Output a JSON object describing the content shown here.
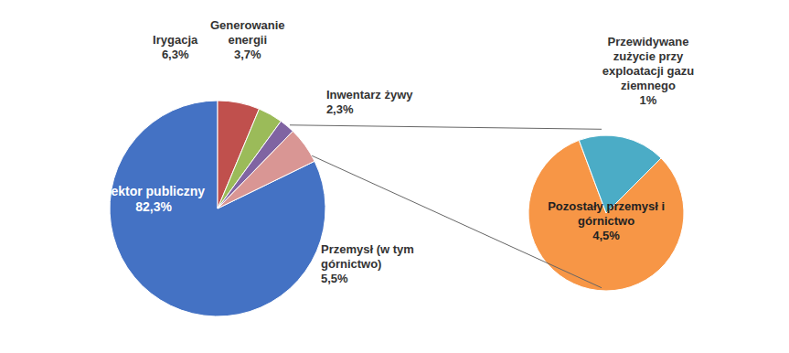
{
  "chart_data": [
    {
      "type": "pie",
      "categories": [
        "Sektor publiczny",
        "Irygacja",
        "Generowanie\nenergii",
        "Inwentarz żywy",
        "Przemysł (w tym\ngórnictwo)"
      ],
      "values": [
        82.3,
        6.3,
        3.7,
        2.3,
        5.5
      ],
      "value_labels": [
        "82,3%",
        "6,3%",
        "3,7%",
        "2,3%",
        "5,5%"
      ],
      "colors": [
        "#4472C4",
        "#C0504D",
        "#9BBB59",
        "#8064A2",
        "#D99694"
      ],
      "data_labels": true
    },
    {
      "type": "pie",
      "categories": [
        "Pozostały przemysł i\ngórnictwo",
        "Przewidywane\nzużycie przy\nexploatacji gazu\nziemnego"
      ],
      "values": [
        4.5,
        1.0
      ],
      "value_labels": [
        "4,5%",
        "1%"
      ],
      "colors": [
        "#F79646",
        "#4BACC6"
      ],
      "data_labels": true
    }
  ]
}
